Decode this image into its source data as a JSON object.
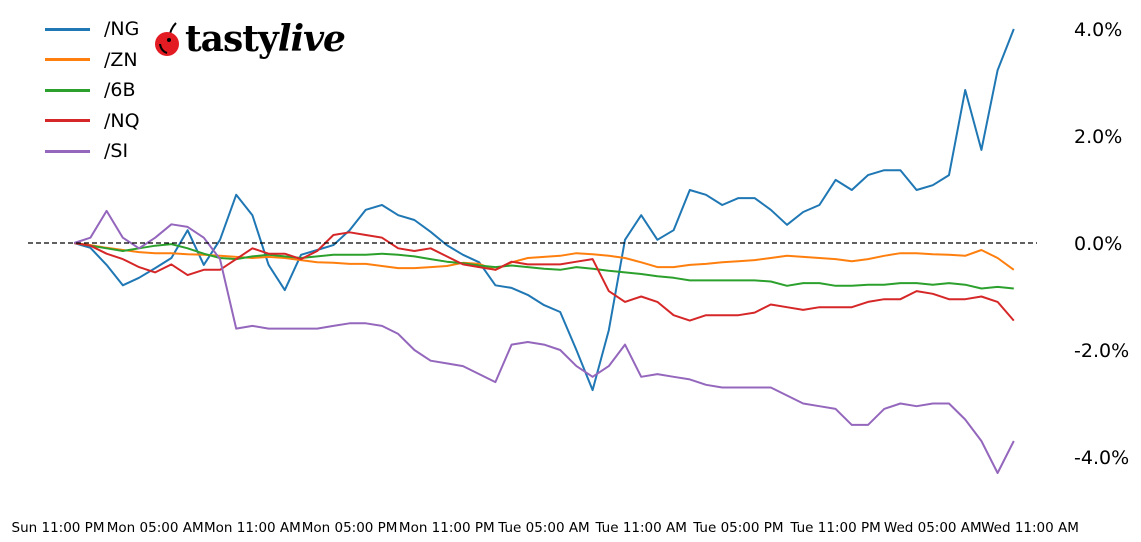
{
  "chart_data": {
    "type": "line",
    "title": "",
    "xlabel": "",
    "ylabel": "",
    "ylim": [
      -4.9,
      4.3
    ],
    "xlim": [
      "Sun 11:00 PM",
      "Wed 11:00 AM"
    ],
    "grid": false,
    "legend_position": "top-left",
    "zero_line": {
      "value": 0,
      "style": "dashed",
      "color": "#000000"
    },
    "y_ticks": [
      {
        "value": 4,
        "label": "4.0%"
      },
      {
        "value": 2,
        "label": "2.0%"
      },
      {
        "value": 0,
        "label": "0.0%"
      },
      {
        "value": -2,
        "label": "-2.0%"
      },
      {
        "value": -4,
        "label": "-4.0%"
      }
    ],
    "x_ticks": [
      "Sun 11:00 PM",
      "Mon 05:00 AM",
      "Mon 11:00 AM",
      "Mon 05:00 PM",
      "Mon 11:00 PM",
      "Tue 05:00 AM",
      "Tue 11:00 AM",
      "Tue 05:00 PM",
      "Tue 11:00 PM",
      "Wed 05:00 AM",
      "Wed 11:00 AM"
    ],
    "x": [
      "Mon 12:00 AM",
      "Mon 01:00 AM",
      "Mon 02:00 AM",
      "Mon 03:00 AM",
      "Mon 04:00 AM",
      "Mon 05:00 AM",
      "Mon 06:00 AM",
      "Mon 07:00 AM",
      "Mon 08:00 AM",
      "Mon 09:00 AM",
      "Mon 10:00 AM",
      "Mon 11:00 AM",
      "Mon 12:00 PM",
      "Mon 01:00 PM",
      "Mon 02:00 PM",
      "Mon 03:00 PM",
      "Mon 04:00 PM",
      "Mon 05:00 PM",
      "Mon 06:00 PM",
      "Mon 07:00 PM",
      "Mon 08:00 PM",
      "Mon 09:00 PM",
      "Mon 10:00 PM",
      "Mon 11:00 PM",
      "Tue 12:00 AM",
      "Tue 01:00 AM",
      "Tue 02:00 AM",
      "Tue 03:00 AM",
      "Tue 04:00 AM",
      "Tue 05:00 AM",
      "Tue 06:00 AM",
      "Tue 07:00 AM",
      "Tue 08:00 AM",
      "Tue 09:00 AM",
      "Tue 10:00 AM",
      "Tue 11:00 AM",
      "Tue 12:00 PM",
      "Tue 01:00 PM",
      "Tue 02:00 PM",
      "Tue 03:00 PM",
      "Tue 04:00 PM",
      "Tue 05:00 PM",
      "Tue 06:00 PM",
      "Tue 07:00 PM",
      "Tue 08:00 PM",
      "Tue 09:00 PM",
      "Tue 10:00 PM",
      "Tue 11:00 PM",
      "Wed 12:00 AM",
      "Wed 01:00 AM",
      "Wed 02:00 AM",
      "Wed 03:00 AM",
      "Wed 04:00 AM",
      "Wed 05:00 AM",
      "Wed 06:00 AM",
      "Wed 07:00 AM",
      "Wed 08:00 AM",
      "Wed 09:00 AM",
      "Wed 10:00 AM"
    ],
    "series": [
      {
        "name": "/NG",
        "color": "#1f77b4",
        "values": [
          0,
          -0.09,
          -0.41,
          -0.79,
          -0.65,
          -0.47,
          -0.28,
          0.24,
          -0.41,
          0.06,
          0.9,
          0.52,
          -0.41,
          -0.88,
          -0.22,
          -0.13,
          -0.04,
          0.24,
          0.62,
          0.71,
          0.52,
          0.43,
          0.21,
          -0.04,
          -0.22,
          -0.36,
          -0.79,
          -0.84,
          -0.97,
          -1.16,
          -1.29,
          -2.0,
          -2.75,
          -1.63,
          0.06,
          0.52,
          0.06,
          0.24,
          0.99,
          0.9,
          0.71,
          0.84,
          0.84,
          0.62,
          0.34,
          0.58,
          0.71,
          1.18,
          0.99,
          1.27,
          1.36,
          1.36,
          0.99,
          1.08,
          1.27,
          2.86,
          1.74,
          3.23,
          4.0
        ]
      },
      {
        "name": "/ZN",
        "color": "#ff7f0e",
        "values": [
          0,
          -0.04,
          -0.09,
          -0.13,
          -0.17,
          -0.19,
          -0.19,
          -0.21,
          -0.22,
          -0.24,
          -0.26,
          -0.28,
          -0.26,
          -0.28,
          -0.32,
          -0.36,
          -0.37,
          -0.39,
          -0.39,
          -0.43,
          -0.47,
          -0.47,
          -0.45,
          -0.43,
          -0.37,
          -0.39,
          -0.5,
          -0.36,
          -0.28,
          -0.26,
          -0.24,
          -0.19,
          -0.21,
          -0.24,
          -0.28,
          -0.36,
          -0.45,
          -0.45,
          -0.41,
          -0.39,
          -0.36,
          -0.34,
          -0.32,
          -0.28,
          -0.24,
          -0.26,
          -0.28,
          -0.3,
          -0.34,
          -0.3,
          -0.24,
          -0.19,
          -0.19,
          -0.21,
          -0.22,
          -0.24,
          -0.13,
          -0.28,
          -0.5
        ]
      },
      {
        "name": "/6B",
        "color": "#2ca02c",
        "values": [
          0,
          -0.05,
          -0.1,
          -0.15,
          -0.1,
          -0.05,
          -0.02,
          -0.1,
          -0.2,
          -0.28,
          -0.3,
          -0.25,
          -0.22,
          -0.25,
          -0.28,
          -0.25,
          -0.22,
          -0.22,
          -0.22,
          -0.2,
          -0.22,
          -0.25,
          -0.3,
          -0.35,
          -0.38,
          -0.42,
          -0.45,
          -0.42,
          -0.45,
          -0.48,
          -0.5,
          -0.45,
          -0.48,
          -0.52,
          -0.55,
          -0.58,
          -0.62,
          -0.65,
          -0.7,
          -0.7,
          -0.7,
          -0.7,
          -0.7,
          -0.72,
          -0.8,
          -0.75,
          -0.75,
          -0.8,
          -0.8,
          -0.78,
          -0.78,
          -0.75,
          -0.75,
          -0.78,
          -0.75,
          -0.78,
          -0.85,
          -0.82,
          -0.85
        ]
      },
      {
        "name": "/NQ",
        "color": "#d62728",
        "values": [
          0,
          -0.05,
          -0.2,
          -0.3,
          -0.45,
          -0.55,
          -0.4,
          -0.6,
          -0.5,
          -0.5,
          -0.3,
          -0.1,
          -0.2,
          -0.2,
          -0.3,
          -0.15,
          0.15,
          0.2,
          0.15,
          0.1,
          -0.1,
          -0.15,
          -0.1,
          -0.25,
          -0.4,
          -0.45,
          -0.5,
          -0.35,
          -0.4,
          -0.4,
          -0.4,
          -0.35,
          -0.3,
          -0.9,
          -1.1,
          -1.0,
          -1.1,
          -1.35,
          -1.45,
          -1.35,
          -1.35,
          -1.35,
          -1.3,
          -1.15,
          -1.2,
          -1.25,
          -1.2,
          -1.2,
          -1.2,
          -1.1,
          -1.05,
          -1.05,
          -0.9,
          -0.95,
          -1.05,
          -1.05,
          -1.0,
          -1.1,
          -1.45
        ]
      },
      {
        "name": "/SI",
        "color": "#9467bd",
        "values": [
          0,
          0.1,
          0.6,
          0.1,
          -0.1,
          0.1,
          0.35,
          0.3,
          0.1,
          -0.3,
          -1.6,
          -1.55,
          -1.6,
          -1.6,
          -1.6,
          -1.6,
          -1.55,
          -1.5,
          -1.5,
          -1.55,
          -1.7,
          -2.0,
          -2.2,
          -2.25,
          -2.3,
          -2.45,
          -2.6,
          -1.9,
          -1.85,
          -1.9,
          -2.0,
          -2.3,
          -2.5,
          -2.3,
          -1.9,
          -2.5,
          -2.45,
          -2.5,
          -2.55,
          -2.65,
          -2.7,
          -2.7,
          -2.7,
          -2.7,
          -2.85,
          -3.0,
          -3.05,
          -3.1,
          -3.4,
          -3.4,
          -3.1,
          -3.0,
          -3.05,
          -3.0,
          -3.0,
          -3.3,
          -3.7,
          -4.3,
          -3.7
        ]
      }
    ]
  },
  "logo": {
    "brand": "tastylive",
    "part1": "tasty",
    "part2": "live",
    "cherry_color": "#e31b23"
  }
}
